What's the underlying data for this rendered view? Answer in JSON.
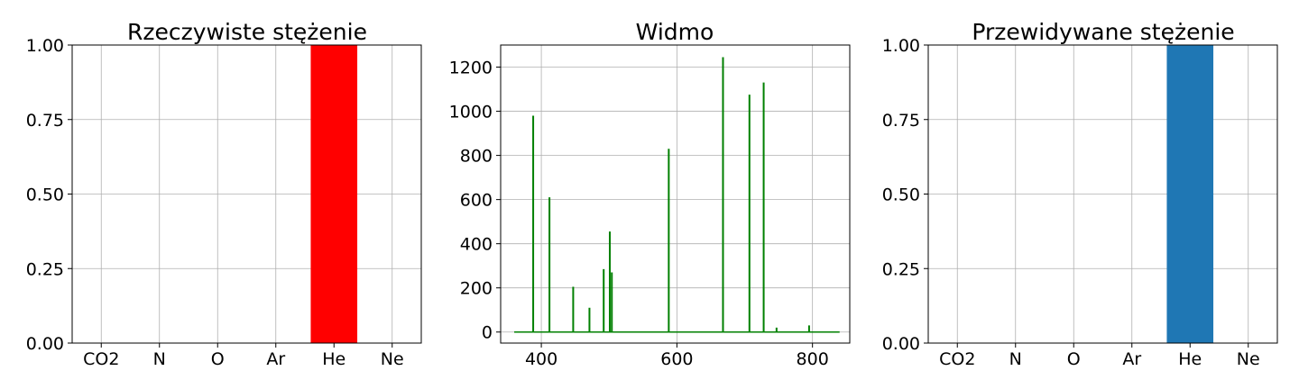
{
  "chart_data": [
    {
      "type": "bar",
      "title": "Rzeczywiste stężenie",
      "categories": [
        "CO2",
        "N",
        "O",
        "Ar",
        "He",
        "Ne"
      ],
      "values": [
        0,
        0,
        0,
        0,
        1.0,
        0
      ],
      "ylim": [
        0,
        1
      ],
      "yticks": [
        "0.00",
        "0.25",
        "0.50",
        "0.75",
        "1.00"
      ],
      "bar_color": "#ff0000",
      "grid": true
    },
    {
      "type": "line",
      "title": "Widmo",
      "xlim": [
        340,
        855
      ],
      "ylim": [
        -50,
        1300
      ],
      "xticks": [
        "400",
        "600",
        "800"
      ],
      "yticks": [
        "0",
        "200",
        "400",
        "600",
        "800",
        "1000",
        "1200"
      ],
      "line_color": "#008000",
      "grid": true,
      "baseline": {
        "x": [
          360,
          840
        ],
        "y": 0
      },
      "peaks": [
        {
          "x": 388,
          "y": 980
        },
        {
          "x": 412,
          "y": 610
        },
        {
          "x": 447,
          "y": 205
        },
        {
          "x": 471,
          "y": 110
        },
        {
          "x": 492,
          "y": 285
        },
        {
          "x": 501,
          "y": 455
        },
        {
          "x": 504,
          "y": 270
        },
        {
          "x": 588,
          "y": 830
        },
        {
          "x": 668,
          "y": 1245
        },
        {
          "x": 707,
          "y": 1075
        },
        {
          "x": 728,
          "y": 1130
        },
        {
          "x": 747,
          "y": 20
        },
        {
          "x": 795,
          "y": 30
        }
      ]
    },
    {
      "type": "bar",
      "title": "Przewidywane stężenie",
      "categories": [
        "CO2",
        "N",
        "O",
        "Ar",
        "He",
        "Ne"
      ],
      "values": [
        0,
        0,
        0,
        0,
        1.0,
        0
      ],
      "ylim": [
        0,
        1
      ],
      "yticks": [
        "0.00",
        "0.25",
        "0.50",
        "0.75",
        "1.00"
      ],
      "bar_color": "#1f77b4",
      "grid": true
    }
  ]
}
